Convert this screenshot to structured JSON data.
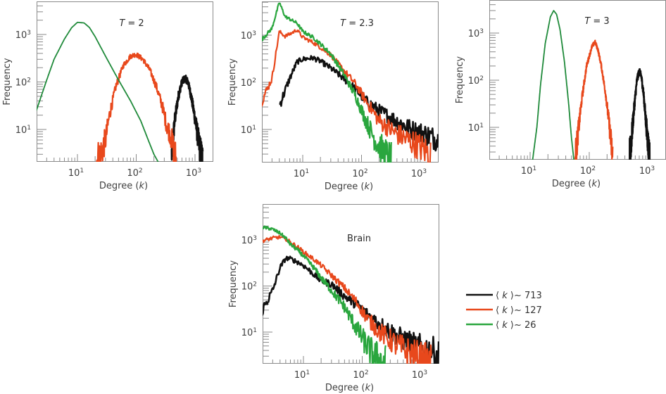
{
  "chart_data": [
    {
      "type": "line",
      "id": "T2",
      "title": "T = 2",
      "title_var": "T",
      "title_value": "= 2",
      "xlabel": "Degree (k)",
      "ylabel": "Frequency",
      "xscale": "log",
      "yscale": "log",
      "xlim": [
        2,
        2000
      ],
      "ylim": [
        2,
        5000
      ],
      "xticks": [
        "10^1",
        "10^2",
        "10^3"
      ],
      "yticks": [
        "10^1",
        "10^2",
        "10^3"
      ],
      "series": [
        {
          "name": "⟨k⟩~713",
          "color": "#111111",
          "noisy": true,
          "points": [
            [
              400,
              3
            ],
            [
              450,
              15
            ],
            [
              520,
              50
            ],
            [
              600,
              100
            ],
            [
              680,
              120
            ],
            [
              760,
              100
            ],
            [
              860,
              50
            ],
            [
              980,
              20
            ],
            [
              1100,
              8
            ],
            [
              1250,
              3
            ],
            [
              1350,
              2
            ]
          ]
        },
        {
          "name": "⟨k⟩~127",
          "color": "#e8481c",
          "noisy": true,
          "points": [
            [
              20,
              2
            ],
            [
              25,
              3
            ],
            [
              30,
              6
            ],
            [
              35,
              20
            ],
            [
              45,
              80
            ],
            [
              60,
              220
            ],
            [
              80,
              350
            ],
            [
              100,
              380
            ],
            [
              130,
              300
            ],
            [
              170,
              180
            ],
            [
              220,
              80
            ],
            [
              280,
              30
            ],
            [
              330,
              12
            ],
            [
              380,
              8
            ],
            [
              430,
              4
            ],
            [
              480,
              2
            ]
          ]
        },
        {
          "name": "⟨k⟩~26",
          "color": "#1f8a3a",
          "noisy": false,
          "points": [
            [
              2,
              25
            ],
            [
              3,
              110
            ],
            [
              4,
              300
            ],
            [
              6,
              800
            ],
            [
              8,
              1400
            ],
            [
              10,
              1800
            ],
            [
              13,
              1750
            ],
            [
              16,
              1400
            ],
            [
              20,
              900
            ],
            [
              30,
              350
            ],
            [
              50,
              110
            ],
            [
              80,
              40
            ],
            [
              120,
              15
            ],
            [
              160,
              6
            ],
            [
              200,
              3
            ],
            [
              240,
              2
            ]
          ]
        }
      ]
    },
    {
      "type": "line",
      "id": "T2_3",
      "title": "T = 2.3",
      "title_var": "T",
      "title_value": "= 2.3",
      "xlabel": "Degree (k)",
      "ylabel": "Frequency",
      "xscale": "log",
      "yscale": "log",
      "xlim": [
        2,
        2000
      ],
      "ylim": [
        2,
        5000
      ],
      "xticks": [
        "10^1",
        "10^2",
        "10^3"
      ],
      "yticks": [
        "10^1",
        "10^2",
        "10^3"
      ],
      "series": [
        {
          "name": "⟨k⟩~713",
          "color": "#111111",
          "noisy": true,
          "points": [
            [
              4,
              32
            ],
            [
              6,
              120
            ],
            [
              8,
              270
            ],
            [
              10,
              310
            ],
            [
              15,
              330
            ],
            [
              20,
              280
            ],
            [
              30,
              200
            ],
            [
              50,
              120
            ],
            [
              80,
              70
            ],
            [
              120,
              40
            ],
            [
              200,
              25
            ],
            [
              400,
              15
            ],
            [
              700,
              10
            ],
            [
              1200,
              8
            ],
            [
              2000,
              6
            ]
          ]
        },
        {
          "name": "⟨k⟩~127",
          "color": "#e8481c",
          "noisy": true,
          "points": [
            [
              2,
              40
            ],
            [
              3,
              120
            ],
            [
              4,
              1200
            ],
            [
              5,
              950
            ],
            [
              6,
              1050
            ],
            [
              8,
              1300
            ],
            [
              10,
              900
            ],
            [
              15,
              700
            ],
            [
              20,
              550
            ],
            [
              30,
              380
            ],
            [
              50,
              180
            ],
            [
              80,
              90
            ],
            [
              120,
              40
            ],
            [
              200,
              15
            ],
            [
              400,
              8
            ],
            [
              800,
              5
            ],
            [
              1500,
              3
            ]
          ]
        },
        {
          "name": "⟨k⟩~26",
          "color": "#2aa63e",
          "noisy": true,
          "points": [
            [
              2,
              800
            ],
            [
              3,
              1400
            ],
            [
              4,
              5000
            ],
            [
              5,
              2500
            ],
            [
              6,
              2200
            ],
            [
              8,
              1800
            ],
            [
              10,
              1200
            ],
            [
              15,
              900
            ],
            [
              20,
              650
            ],
            [
              30,
              400
            ],
            [
              50,
              150
            ],
            [
              80,
              50
            ],
            [
              120,
              15
            ],
            [
              170,
              6
            ],
            [
              250,
              3
            ],
            [
              320,
              2
            ]
          ]
        }
      ]
    },
    {
      "type": "line",
      "id": "T3",
      "title": "T = 3",
      "title_var": "T",
      "title_value": "= 3",
      "xlabel": "Degree (k)",
      "ylabel": "Frequency",
      "xscale": "log",
      "yscale": "log",
      "xlim": [
        2,
        2000
      ],
      "ylim": [
        2,
        5000
      ],
      "xticks": [
        "10^1",
        "10^2",
        "10^3"
      ],
      "yticks": [
        "10^1",
        "10^2",
        "10^3"
      ],
      "series": [
        {
          "name": "⟨k⟩~713",
          "color": "#111111",
          "noisy": true,
          "points": [
            [
              480,
              2
            ],
            [
              520,
              6
            ],
            [
              580,
              30
            ],
            [
              640,
              100
            ],
            [
              700,
              160
            ],
            [
              760,
              120
            ],
            [
              830,
              50
            ],
            [
              900,
              15
            ],
            [
              980,
              5
            ],
            [
              1050,
              2
            ]
          ]
        },
        {
          "name": "⟨k⟩~127",
          "color": "#e8481c",
          "noisy": true,
          "points": [
            [
              58,
              2
            ],
            [
              65,
              8
            ],
            [
              75,
              40
            ],
            [
              90,
              200
            ],
            [
              110,
              500
            ],
            [
              125,
              650
            ],
            [
              140,
              450
            ],
            [
              160,
              200
            ],
            [
              190,
              50
            ],
            [
              220,
              10
            ],
            [
              250,
              2
            ]
          ]
        },
        {
          "name": "⟨k⟩~26",
          "color": "#1f8a3a",
          "noisy": false,
          "points": [
            [
              11,
              2
            ],
            [
              13,
              10
            ],
            [
              15,
              80
            ],
            [
              18,
              600
            ],
            [
              22,
              2200
            ],
            [
              25,
              3000
            ],
            [
              28,
              2500
            ],
            [
              32,
              1200
            ],
            [
              38,
              250
            ],
            [
              45,
              30
            ],
            [
              50,
              6
            ],
            [
              55,
              2
            ]
          ]
        }
      ]
    },
    {
      "type": "line",
      "id": "Brain",
      "title": "Brain",
      "title_var": "",
      "title_value": "Brain",
      "xlabel": "Degree (k)",
      "ylabel": "Frequency",
      "xscale": "log",
      "yscale": "log",
      "xlim": [
        2,
        2000
      ],
      "ylim": [
        2,
        5000
      ],
      "xticks": [
        "10^1",
        "10^2",
        "10^3"
      ],
      "yticks": [
        "10^1",
        "10^2",
        "10^3"
      ],
      "series": [
        {
          "name": "⟨k⟩~713",
          "color": "#111111",
          "noisy": true,
          "points": [
            [
              2,
              30
            ],
            [
              3,
              80
            ],
            [
              4,
              250
            ],
            [
              5,
              400
            ],
            [
              6,
              390
            ],
            [
              8,
              330
            ],
            [
              10,
              280
            ],
            [
              15,
              180
            ],
            [
              20,
              130
            ],
            [
              30,
              110
            ],
            [
              50,
              60
            ],
            [
              80,
              40
            ],
            [
              120,
              25
            ],
            [
              200,
              15
            ],
            [
              400,
              8
            ],
            [
              800,
              5
            ],
            [
              1500,
              4
            ],
            [
              2000,
              3
            ]
          ]
        },
        {
          "name": "⟨k⟩~127",
          "color": "#e8481c",
          "noisy": true,
          "points": [
            [
              2,
              950
            ],
            [
              3,
              1100
            ],
            [
              4,
              1150
            ],
            [
              5,
              1050
            ],
            [
              6,
              900
            ],
            [
              8,
              700
            ],
            [
              10,
              550
            ],
            [
              15,
              380
            ],
            [
              20,
              280
            ],
            [
              30,
              170
            ],
            [
              50,
              90
            ],
            [
              80,
              45
            ],
            [
              120,
              20
            ],
            [
              200,
              10
            ],
            [
              400,
              5
            ],
            [
              800,
              3
            ],
            [
              1500,
              2
            ]
          ]
        },
        {
          "name": "⟨k⟩~26",
          "color": "#2aa63e",
          "noisy": true,
          "points": [
            [
              2,
              1900
            ],
            [
              3,
              1700
            ],
            [
              4,
              1400
            ],
            [
              5,
              1100
            ],
            [
              6,
              800
            ],
            [
              8,
              600
            ],
            [
              10,
              450
            ],
            [
              15,
              250
            ],
            [
              20,
              150
            ],
            [
              30,
              80
            ],
            [
              50,
              35
            ],
            [
              80,
              12
            ],
            [
              120,
              5
            ],
            [
              160,
              3
            ],
            [
              250,
              2
            ]
          ]
        }
      ]
    }
  ],
  "legend": {
    "placement": "right of bottom panel",
    "entries": [
      {
        "label": "⟨ k ⟩~ 713",
        "color": "#111111"
      },
      {
        "label": "⟨ k ⟩~ 127",
        "color": "#e8481c"
      },
      {
        "label": "⟨ k ⟩~ 26",
        "color": "#2aa63e"
      }
    ]
  }
}
